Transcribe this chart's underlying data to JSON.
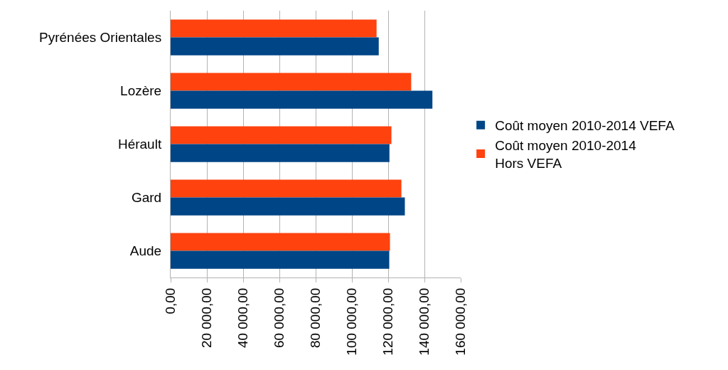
{
  "chart_data": {
    "type": "bar",
    "orientation": "horizontal",
    "categories": [
      "Pyrénées Orientales",
      "Lozère",
      "Hérault",
      "Gard",
      "Aude"
    ],
    "series": [
      {
        "name": "Coût moyen 2010-2014 VEFA",
        "color": "#004586",
        "values": [
          114800,
          144400,
          120700,
          129200,
          120600
        ]
      },
      {
        "name": "Coût moyen 2010-2014 Hors VEFA",
        "color": "#ff420e",
        "values": [
          113600,
          132700,
          121800,
          127300,
          121000
        ]
      }
    ],
    "xlim": [
      0,
      160000
    ],
    "xticks": [
      {
        "value": 0,
        "label": "0,00"
      },
      {
        "value": 20000,
        "label": "20 000,00"
      },
      {
        "value": 40000,
        "label": "40 000,00"
      },
      {
        "value": 60000,
        "label": "60 000,00"
      },
      {
        "value": 80000,
        "label": "80 000,00"
      },
      {
        "value": 100000,
        "label": "100 000,00"
      },
      {
        "value": 120000,
        "label": "120 000,00"
      },
      {
        "value": 140000,
        "label": "140 000,00"
      },
      {
        "value": 160000,
        "label": "160 000,00"
      }
    ],
    "grid": "x",
    "legend": "right"
  }
}
